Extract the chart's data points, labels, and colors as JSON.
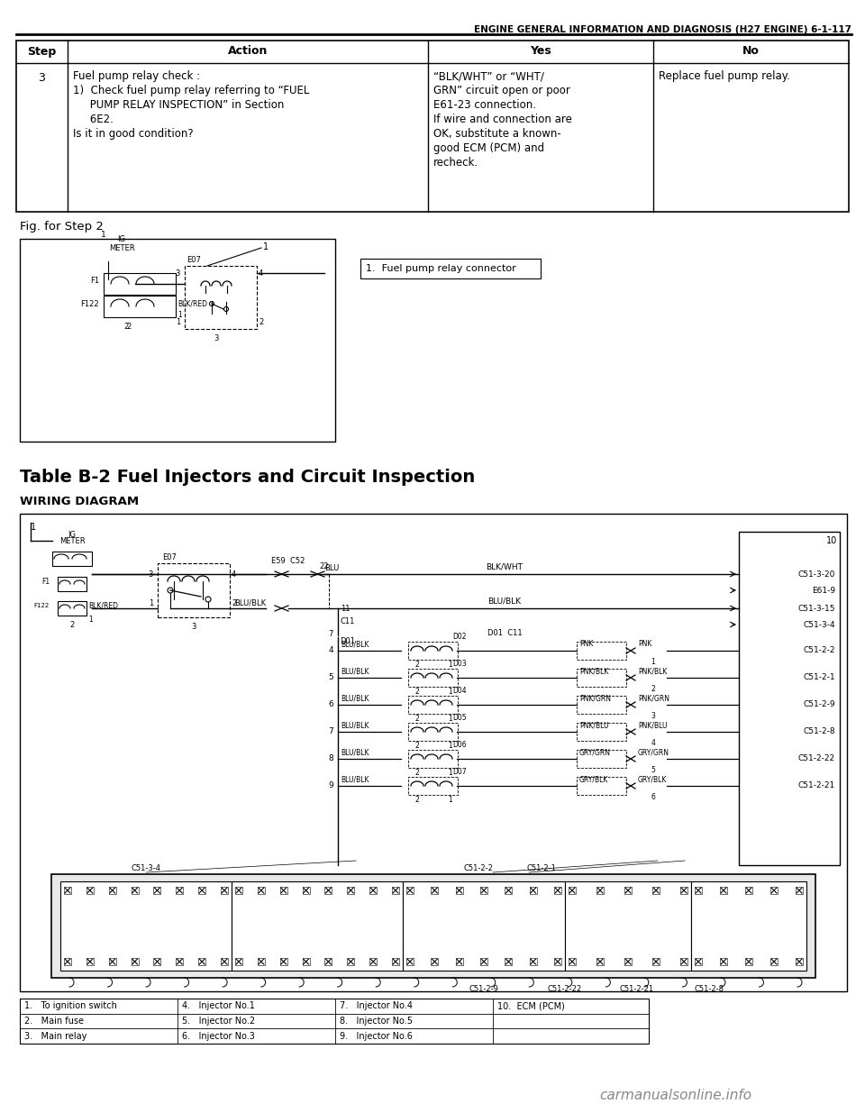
{
  "header_text": "ENGINE GENERAL INFORMATION AND DIAGNOSIS (H27 ENGINE) 6-1-117",
  "table_headers": [
    "Step",
    "Action",
    "Yes",
    "No"
  ],
  "table_row": {
    "step": "3",
    "action_lines": [
      "Fuel pump relay check :",
      "1)  Check fuel pump relay referring to “FUEL",
      "     PUMP RELAY INSPECTION” in Section",
      "     6E2.",
      "Is it in good condition?"
    ],
    "yes_lines": [
      "“BLK/WHT” or “WHT/",
      "GRN” circuit open or poor",
      "E61-23 connection.",
      "If wire and connection are",
      "OK, substitute a known-",
      "good ECM (PCM) and",
      "recheck."
    ],
    "no_lines": [
      "Replace fuel pump relay."
    ]
  },
  "fig_label": "Fig. for Step 2",
  "legend_box_text": "1.  Fuel pump relay connector",
  "table_b2_title": "Table B-2 Fuel Injectors and Circuit Inspection",
  "wiring_label": "WIRING DIAGRAM",
  "bg_color": "#ffffff",
  "border_color": "#000000",
  "text_color": "#000000",
  "watermark": "carmanualsonline.info"
}
